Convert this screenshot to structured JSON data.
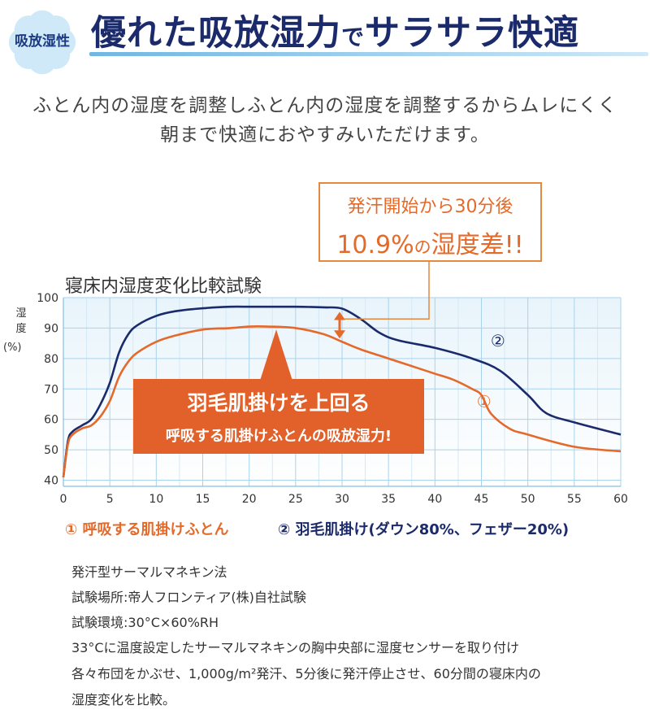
{
  "badge": {
    "label": "吸放湿性",
    "color": "#cfe9f8"
  },
  "headline": {
    "main": "優れた吸放湿力",
    "particle": "で",
    "tail": "サラサラ快適"
  },
  "lead": [
    "ふとん内の湿度を調整しふとん内の湿度を調整するからムレにくく",
    "朝まで快適におやすみいただけます。"
  ],
  "callout": {
    "line1": "発汗開始から30分後",
    "value": "10.9%",
    "particle": "の",
    "tail": "湿度差!!"
  },
  "banner": {
    "line1": "羽毛肌掛けを上回る",
    "line2": "呼吸する肌掛けふとんの吸放湿力!"
  },
  "legend": {
    "series1": "① 呼吸する肌掛けふとん",
    "series2": "② 羽毛肌掛け(ダウン80%、フェザー20%)"
  },
  "notes": [
    "発汗型サーマルマネキン法",
    "試験場所:帝人フロンティア(株)自社試験",
    "試験環境:30°C×60%RH",
    "33°Cに温度設定したサーマルマネキンの胸中央部に湿度センサーを取り付け",
    "各々布団をかぶせ、1,000g/m²発汗、5分後に発汗停止させ、60分間の寝床内の",
    "湿度変化を比較。"
  ],
  "chart_data": {
    "type": "line",
    "title": "寝床内湿度変化比較試験",
    "ylabel": "湿度",
    "ylabel_unit": "(%)",
    "xlabel": "",
    "xlim": [
      0,
      60
    ],
    "ylim": [
      38,
      100
    ],
    "xticks": [
      0,
      5,
      10,
      15,
      20,
      25,
      30,
      35,
      40,
      45,
      50,
      55,
      60
    ],
    "yticks": [
      40,
      50,
      60,
      70,
      80,
      90,
      100
    ],
    "grid": true,
    "series": [
      {
        "name": "① 呼吸する肌掛けふとん",
        "marker": "①",
        "color": "#e4692a",
        "x": [
          0,
          0.5,
          1,
          2,
          3,
          4,
          5,
          6,
          7,
          8,
          10,
          12,
          15,
          18,
          20,
          22,
          25,
          28,
          30,
          32,
          35,
          38,
          40,
          42,
          44,
          45,
          46,
          48,
          50,
          55,
          60
        ],
        "y": [
          41,
          52,
          55,
          57,
          58,
          61,
          66,
          74,
          79,
          82,
          85.5,
          87.5,
          89.5,
          90,
          90.5,
          90.5,
          90,
          88,
          85.5,
          83,
          80,
          77,
          75,
          73,
          70,
          68,
          62,
          57,
          55,
          51,
          49.5
        ]
      },
      {
        "name": "② 羽毛肌掛け(ダウン80%、フェザー20%)",
        "marker": "②",
        "color": "#1b2a6b",
        "x": [
          0,
          0.5,
          1,
          2,
          3,
          4,
          5,
          6,
          7,
          8,
          10,
          12,
          15,
          18,
          20,
          22,
          25,
          28,
          30,
          32,
          34,
          36,
          40,
          44,
          47,
          50,
          52,
          55,
          60
        ],
        "y": [
          41,
          53,
          56,
          58,
          60,
          65,
          72,
          82,
          88,
          91,
          94,
          95.5,
          96.5,
          97,
          97,
          97,
          97,
          96.8,
          96.4,
          93,
          88.5,
          86,
          83.5,
          80,
          76,
          68,
          62,
          59,
          55
        ]
      }
    ],
    "annotation": {
      "x": 30,
      "from": 85.5,
      "to": 96.4,
      "label": "10.9%"
    }
  }
}
